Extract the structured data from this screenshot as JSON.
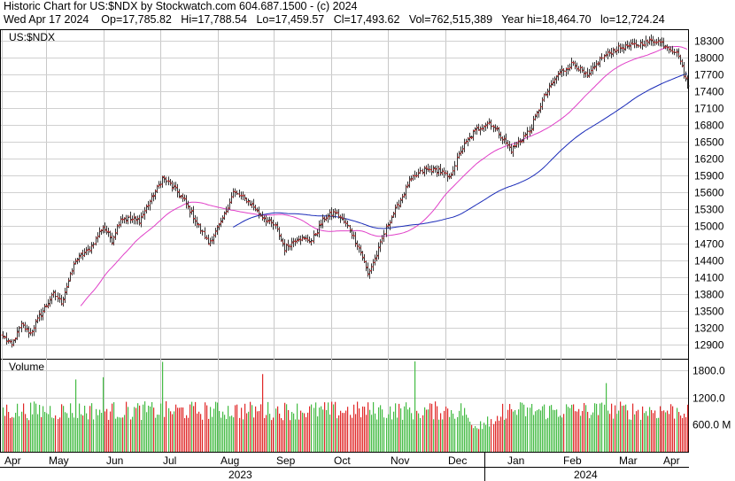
{
  "header": {
    "title": "Historic Chart for US:$NDX by Stockwatch.com 604.687.1500 - (c) 2024",
    "date": "Wed Apr 17 2024",
    "open": "Op=17,785.82",
    "high": "Hi=17,788.54",
    "low": "Lo=17,459.57",
    "close": "Cl=17,493.62",
    "volume": "Vol=762,515,389",
    "year_high": "Year hi=18,464.70",
    "year_low": "lo=12,724.24"
  },
  "chart_data": {
    "type": "ohlc-bar",
    "symbol_label": "US:$NDX",
    "volume_label": "Volume",
    "price_ticks": [
      12900,
      13200,
      13500,
      13800,
      14100,
      14400,
      14700,
      15000,
      15300,
      15600,
      15900,
      16200,
      16500,
      16800,
      17100,
      17400,
      17700,
      18000,
      18300
    ],
    "price_range": [
      12680,
      18450
    ],
    "volume_ticks": [
      {
        "v": 600,
        "label": "600.0 M"
      },
      {
        "v": 1200,
        "label": "1200.0"
      },
      {
        "v": 1800,
        "label": "1800.0"
      }
    ],
    "volume_range": [
      0,
      2000
    ],
    "months": [
      "Apr",
      "May",
      "Jun",
      "Jul",
      "Aug",
      "Sep",
      "Oct",
      "Nov",
      "Dec",
      "Jan",
      "Feb",
      "Mar",
      "Apr"
    ],
    "years": [
      "2023",
      "2024"
    ],
    "price_anchors": [
      [
        0,
        13050
      ],
      [
        5,
        12880
      ],
      [
        10,
        13250
      ],
      [
        15,
        13100
      ],
      [
        20,
        13400
      ],
      [
        28,
        13800
      ],
      [
        32,
        13650
      ],
      [
        40,
        14400
      ],
      [
        48,
        14600
      ],
      [
        55,
        15000
      ],
      [
        60,
        14750
      ],
      [
        65,
        15150
      ],
      [
        75,
        15100
      ],
      [
        82,
        15500
      ],
      [
        88,
        15850
      ],
      [
        92,
        15750
      ],
      [
        100,
        15450
      ],
      [
        108,
        15000
      ],
      [
        113,
        14700
      ],
      [
        120,
        15050
      ],
      [
        127,
        15600
      ],
      [
        135,
        15450
      ],
      [
        142,
        15200
      ],
      [
        150,
        15000
      ],
      [
        155,
        14600
      ],
      [
        162,
        14800
      ],
      [
        170,
        14750
      ],
      [
        177,
        15150
      ],
      [
        183,
        15250
      ],
      [
        190,
        15000
      ],
      [
        197,
        14550
      ],
      [
        201,
        14150
      ],
      [
        206,
        14500
      ],
      [
        212,
        15050
      ],
      [
        218,
        15400
      ],
      [
        224,
        15800
      ],
      [
        232,
        16000
      ],
      [
        240,
        16000
      ],
      [
        246,
        15850
      ],
      [
        252,
        16350
      ],
      [
        260,
        16700
      ],
      [
        268,
        16850
      ],
      [
        273,
        16650
      ],
      [
        280,
        16350
      ],
      [
        290,
        16700
      ],
      [
        298,
        17300
      ],
      [
        306,
        17700
      ],
      [
        314,
        17900
      ],
      [
        322,
        17650
      ],
      [
        330,
        18000
      ],
      [
        338,
        18150
      ],
      [
        345,
        18200
      ],
      [
        352,
        18250
      ],
      [
        360,
        18300
      ],
      [
        366,
        18200
      ],
      [
        372,
        18050
      ],
      [
        375,
        17700
      ],
      [
        377,
        17490
      ]
    ],
    "volume_spikes": {
      "40": 1600,
      "55": 1650,
      "88": 1990,
      "143": 1720,
      "227": 2000,
      "332": 1520
    }
  }
}
